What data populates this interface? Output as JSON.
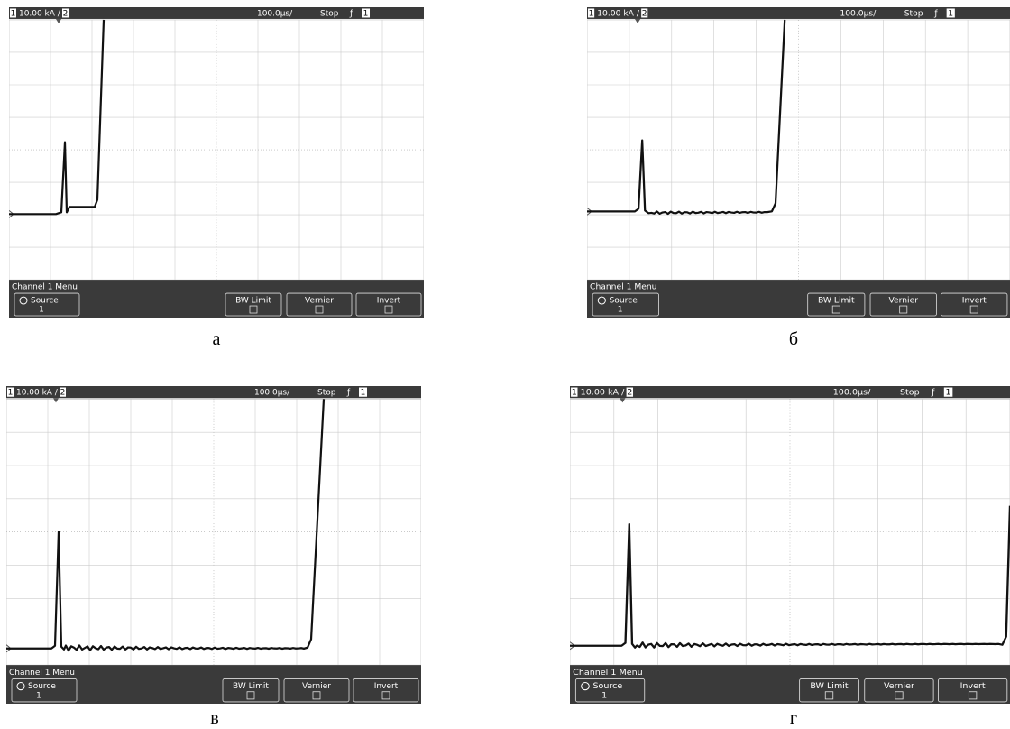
{
  "panels": [
    {
      "header": {
        "channel": "1",
        "scale": "10.00 kA /",
        "ref": "2",
        "timebase": "100.0µs/",
        "mode": "Stop",
        "trigger": "ƒ",
        "trigger_source": "1"
      },
      "menu": {
        "title": "Channel 1 Menu",
        "source": "Source",
        "source_value": "1",
        "buttons": [
          "BW Limit",
          "Vernier",
          "Invert"
        ]
      },
      "caption": "а"
    },
    {
      "header": {
        "channel": "1",
        "scale": "10.00 kA /",
        "ref": "2",
        "timebase": "100.0µs/",
        "mode": "Stop",
        "trigger": "ƒ",
        "trigger_source": "1"
      },
      "menu": {
        "title": "Channel 1 Menu",
        "source": "Source",
        "source_value": "1",
        "buttons": [
          "BW Limit",
          "Vernier",
          "Invert"
        ]
      },
      "caption": "б"
    },
    {
      "header": {
        "channel": "1",
        "scale": "10.00 kA /",
        "ref": "2",
        "timebase": "100.0µs/",
        "mode": "Stop",
        "trigger": "ƒ",
        "trigger_source": "1"
      },
      "menu": {
        "title": "Channel 1 Menu",
        "source": "Source",
        "source_value": "1",
        "buttons": [
          "BW Limit",
          "Vernier",
          "Invert"
        ]
      },
      "caption": "в"
    },
    {
      "header": {
        "channel": "1",
        "scale": "10.00 kA /",
        "ref": "2",
        "timebase": "100.0µs/",
        "mode": "Stop",
        "trigger": "ƒ",
        "trigger_source": "1"
      },
      "menu": {
        "title": "Channel 1 Menu",
        "source": "Source",
        "source_value": "1",
        "buttons": [
          "BW Limit",
          "Vernier",
          "Invert"
        ]
      },
      "caption": "г"
    }
  ]
}
